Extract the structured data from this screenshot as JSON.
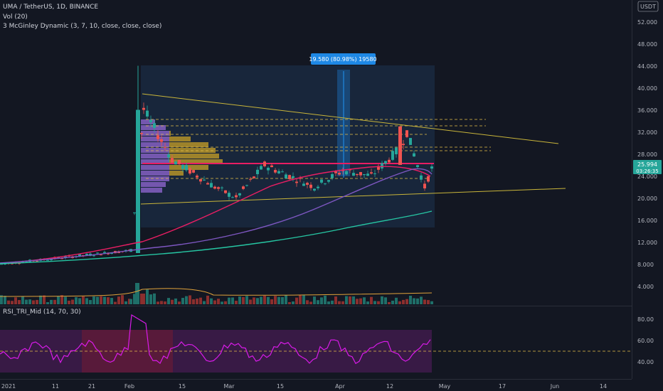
{
  "header": {
    "symbol_line": "UMA / TetherUS, 1D, BINANCE",
    "indicator1": "3 McGinley Dynamic (3, 7, 10, close, close, close)",
    "indicator2": "Vol (20)"
  },
  "price_axis": {
    "currency": "USDT",
    "labels": [
      "52.000",
      "48.000",
      "44.000",
      "40.000",
      "36.000",
      "32.000",
      "28.000",
      "24.000",
      "20.000",
      "16.000",
      "12.000",
      "8.000",
      "4.000"
    ],
    "last_price": "25.994",
    "countdown": "03:26:35"
  },
  "measure_label": "19.580 (80.98%) 19580",
  "rsi": {
    "title": "RSI_TRI_Mid (14, 70, 30)",
    "labels": [
      "80.00",
      "60.00",
      "40.00"
    ]
  },
  "time_axis": {
    "labels": [
      "2021",
      "11",
      "21",
      "Feb",
      "15",
      "Mar",
      "15",
      "Apr",
      "12",
      "May",
      "17",
      "Jun",
      "14"
    ]
  },
  "colors": {
    "background": "#131722",
    "up_candle": "#26a69a",
    "down_candle": "#ef5350",
    "trendline": "#c9b53a",
    "mcginley_fast": "#e91e63",
    "mcginley_mid": "#7e57c2",
    "mcginley_slow": "#26c6a3",
    "rsi_line": "#d81be8",
    "measure_box": "#1e88e5"
  }
}
